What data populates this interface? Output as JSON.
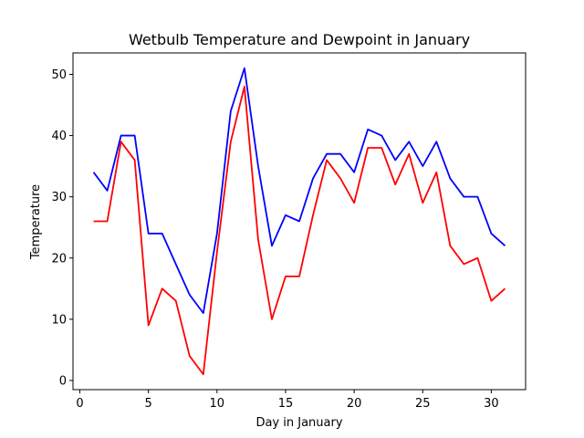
{
  "chart_data": {
    "type": "line",
    "title": "Wetbulb Temperature and Dewpoint in January",
    "xlabel": "Day in January",
    "ylabel": "Temperature",
    "xlim": [
      -0.5,
      32.5
    ],
    "ylim": [
      -1.5,
      53.5
    ],
    "xticks": [
      0,
      5,
      10,
      15,
      20,
      25,
      30
    ],
    "yticks": [
      0,
      10,
      20,
      30,
      40,
      50
    ],
    "grid": false,
    "x": [
      1,
      2,
      3,
      4,
      5,
      6,
      7,
      8,
      9,
      10,
      11,
      12,
      13,
      14,
      15,
      16,
      17,
      18,
      19,
      20,
      21,
      22,
      23,
      24,
      25,
      26,
      27,
      28,
      29,
      30,
      31
    ],
    "series": [
      {
        "color": "#0000ff",
        "values": [
          34,
          31,
          40,
          40,
          24,
          24,
          19,
          14,
          11,
          24,
          44,
          51,
          35,
          22,
          27,
          26,
          33,
          37,
          37,
          34,
          41,
          40,
          36,
          39,
          35,
          39,
          33,
          30,
          30,
          24,
          22
        ]
      },
      {
        "color": "#ff0000",
        "values": [
          26,
          26,
          39,
          36,
          9,
          15,
          13,
          4,
          1,
          21,
          39,
          48,
          23,
          10,
          17,
          17,
          27,
          36,
          33,
          29,
          38,
          38,
          32,
          37,
          29,
          34,
          22,
          19,
          20,
          13,
          15
        ]
      }
    ]
  }
}
